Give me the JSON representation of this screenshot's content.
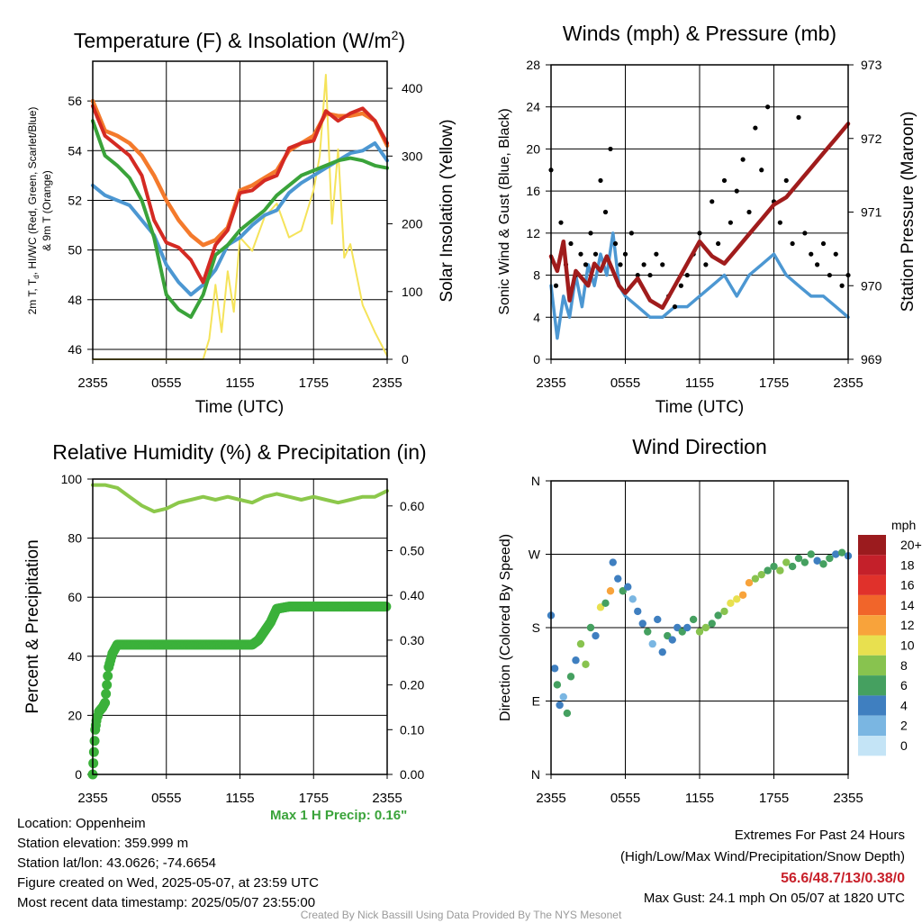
{
  "x_ticks": [
    "2355",
    "0555",
    "1155",
    "1755",
    "2355"
  ],
  "chart_data": [
    {
      "type": "line",
      "title": "Temperature (F) & Insolation (W/m²)",
      "title_parts": {
        "main": "Temperature (F) & Insolation (W/m",
        "sup": "2",
        "end": ")"
      },
      "xlabel": "Time (UTC)",
      "ylabel": "2m T, Td, HI/WC (Red, Green, Scarlet/Blue) & 9m T (Orange)",
      "ylabel_line1": "2m T, T , HI/WC (Red, Green, Scarlet/Blue)",
      "ylabel_sub": "d",
      "ylabel_line2": "& 9m T (Orange)",
      "ylabel_right": "Solar Insolation (Yellow)",
      "ylim": [
        45.6,
        57.6
      ],
      "ylim_right": [
        0,
        440
      ],
      "yticks": [
        "46",
        "48",
        "50",
        "52",
        "54",
        "56"
      ],
      "yticks_right": [
        "0",
        "100",
        "200",
        "300",
        "400"
      ],
      "series": [
        {
          "x": [
            0,
            1,
            2,
            3,
            4,
            5,
            6,
            7,
            8,
            9,
            10,
            11,
            12,
            13,
            14,
            15,
            16,
            17,
            18,
            19,
            20,
            21,
            22,
            23,
            24
          ],
          "values": [
            55.8,
            54.6,
            54.2,
            53.8,
            53.0,
            51.2,
            50.3,
            50.1,
            49.6,
            48.7,
            50.2,
            50.8,
            52.3,
            52.4,
            52.8,
            53.0,
            54.1,
            54.3,
            54.4,
            55.6,
            55.2,
            55.5,
            55.7,
            55.2,
            54.3
          ]
        },
        {
          "x": [
            0,
            1,
            2,
            3,
            4,
            5,
            6,
            7,
            8,
            9,
            10,
            11,
            12,
            13,
            14,
            15,
            16,
            17,
            18,
            19,
            20,
            21,
            22,
            23,
            24
          ],
          "values": [
            55.2,
            53.8,
            53.4,
            52.9,
            52.0,
            50.5,
            48.2,
            47.6,
            47.3,
            48.2,
            49.8,
            50.2,
            50.8,
            51.2,
            51.6,
            52.2,
            52.6,
            53.0,
            53.2,
            53.4,
            53.6,
            53.7,
            53.6,
            53.4,
            53.3
          ]
        },
        {
          "x": [
            0,
            1,
            2,
            3,
            4,
            5,
            6,
            7,
            8,
            9,
            10,
            11,
            12,
            13,
            14,
            15,
            16,
            17,
            18,
            19,
            20,
            21,
            22,
            23,
            24
          ],
          "values": [
            52.6,
            52.2,
            52.0,
            51.8,
            51.2,
            50.6,
            49.4,
            48.7,
            48.2,
            48.6,
            49.2,
            50.2,
            50.5,
            51.0,
            51.4,
            51.6,
            52.3,
            52.7,
            53.0,
            53.3,
            53.6,
            53.9,
            54.0,
            54.3,
            53.6
          ]
        },
        {
          "x": [
            0,
            1,
            2,
            3,
            4,
            5,
            6,
            7,
            8,
            9,
            10,
            11,
            12,
            13,
            14,
            15,
            16,
            17,
            18,
            19,
            20,
            21,
            22,
            23,
            24
          ],
          "values": [
            56.0,
            54.8,
            54.6,
            54.3,
            53.8,
            53.0,
            52.0,
            51.2,
            50.6,
            50.2,
            50.4,
            50.9,
            52.4,
            52.6,
            52.9,
            53.2,
            54.0,
            54.3,
            54.6,
            55.5,
            55.4,
            55.4,
            55.5,
            55.2,
            54.2
          ]
        },
        {
          "x": [
            0,
            1,
            2,
            3,
            4,
            5,
            6,
            7,
            8,
            9,
            9.5,
            10,
            10.5,
            11,
            11.5,
            12,
            13,
            14,
            15,
            16,
            17,
            18,
            18.5,
            19,
            19.5,
            20,
            20.5,
            21,
            22,
            23,
            24
          ],
          "values": [
            0,
            0,
            0,
            0,
            0,
            0,
            0,
            0,
            0,
            0,
            30,
            110,
            40,
            130,
            70,
            180,
            160,
            210,
            230,
            180,
            190,
            250,
            300,
            420,
            200,
            310,
            150,
            170,
            80,
            40,
            5
          ]
        }
      ]
    },
    {
      "type": "line",
      "title": "Winds (mph) & Pressure (mb)",
      "xlabel": "Time (UTC)",
      "ylabel": "Sonic Wind & Gust (Blue, Black)",
      "ylabel_right": "Station Pressure (Maroon)",
      "ylim": [
        0,
        28
      ],
      "ylim_right": [
        969,
        973
      ],
      "yticks": [
        "0",
        "4",
        "8",
        "12",
        "16",
        "20",
        "24",
        "28"
      ],
      "yticks_right": [
        "969",
        "970",
        "971",
        "972",
        "973"
      ],
      "series": [
        {
          "x": [
            0,
            0.5,
            1,
            1.5,
            2,
            2.5,
            3,
            3.5,
            4,
            4.5,
            5,
            5.5,
            6,
            7,
            8,
            9,
            10,
            11,
            12,
            13,
            14,
            15,
            16,
            17,
            18,
            19,
            20,
            21,
            22,
            23,
            24
          ],
          "values": [
            7,
            2,
            6,
            4,
            8,
            5,
            9,
            7,
            10,
            8,
            12,
            7,
            6,
            5,
            4,
            4,
            5,
            5,
            6,
            7,
            8,
            6,
            8,
            9,
            10,
            8,
            7,
            6,
            6,
            5,
            4
          ]
        },
        {
          "x": [
            0,
            0.4,
            0.8,
            1.2,
            1.6,
            2,
            2.4,
            2.8,
            3.2,
            3.6,
            4,
            4.4,
            4.8,
            5.2,
            5.6,
            6,
            6.5,
            7,
            7.5,
            8,
            8.5,
            9,
            9.5,
            10,
            10.5,
            11,
            11.5,
            12,
            12.5,
            13,
            13.5,
            14,
            14.5,
            15,
            15.5,
            16,
            16.5,
            17,
            17.5,
            18,
            18.5,
            19,
            19.5,
            20,
            20.5,
            21,
            21.5,
            22,
            22.5,
            23,
            23.5,
            24
          ],
          "values": [
            18,
            7,
            13,
            9,
            11,
            8,
            10,
            9,
            12,
            10,
            17,
            14,
            20,
            11,
            9,
            10,
            12,
            8,
            9,
            8,
            10,
            9,
            6,
            5,
            7,
            8,
            10,
            12,
            9,
            15,
            11,
            17,
            13,
            16,
            19,
            14,
            22,
            18,
            24,
            15,
            13,
            17,
            11,
            23,
            12,
            10,
            9,
            11,
            8,
            10,
            7,
            8
          ]
        },
        {
          "x": [
            0,
            0.5,
            1,
            1.5,
            2,
            2.5,
            3,
            3.5,
            4,
            4.5,
            5,
            5.5,
            6,
            7,
            8,
            9,
            10,
            11,
            12,
            13,
            14,
            15,
            16,
            17,
            18,
            19,
            20,
            21,
            22,
            23,
            24
          ],
          "values": [
            970.4,
            970.2,
            970.6,
            969.8,
            970.2,
            970.1,
            970.0,
            970.3,
            970.2,
            970.4,
            970.2,
            970.0,
            969.9,
            970.1,
            969.8,
            969.7,
            970.0,
            970.3,
            970.6,
            970.4,
            970.3,
            970.5,
            970.7,
            970.9,
            971.1,
            971.2,
            971.4,
            971.6,
            971.8,
            972.0,
            972.2
          ]
        }
      ]
    },
    {
      "type": "line",
      "title": "Relative Humidity (%) & Precipitation (in)",
      "ylabel": "Percent & Precipitation",
      "ylim": [
        0,
        100
      ],
      "ylim_right": [
        0,
        0.66
      ],
      "yticks": [
        "0",
        "20",
        "40",
        "60",
        "80",
        "100"
      ],
      "yticks_right": [
        "0.00",
        "0.10",
        "0.20",
        "0.30",
        "0.40",
        "0.50",
        "0.60"
      ],
      "series": [
        {
          "x": [
            0,
            1,
            2,
            3,
            4,
            5,
            6,
            7,
            8,
            9,
            10,
            11,
            12,
            13,
            14,
            15,
            16,
            17,
            18,
            19,
            20,
            21,
            22,
            23,
            24
          ],
          "values": [
            98,
            98,
            97,
            94,
            91,
            89,
            90,
            92,
            93,
            94,
            93,
            94,
            93,
            92,
            94,
            95,
            94,
            93,
            94,
            93,
            92,
            93,
            94,
            94,
            96
          ]
        },
        {
          "x": [
            0,
            0.1,
            0.2,
            0.3,
            0.5,
            0.8,
            1.0,
            1.3,
            1.6,
            2.0,
            3,
            5,
            8,
            11,
            13,
            13.5,
            14,
            14.5,
            15,
            16,
            18,
            20,
            22,
            24
          ],
          "values": [
            0,
            0.05,
            0.1,
            0.12,
            0.14,
            0.15,
            0.16,
            0.24,
            0.27,
            0.29,
            0.29,
            0.29,
            0.29,
            0.29,
            0.29,
            0.3,
            0.32,
            0.34,
            0.37,
            0.375,
            0.375,
            0.375,
            0.375,
            0.375
          ]
        }
      ]
    },
    {
      "type": "scatter",
      "title": "Wind Direction",
      "ylabel": "Direction (Colored By Speed)",
      "ylim": [
        0,
        360
      ],
      "yticks": [
        "N",
        "E",
        "S",
        "W",
        "N"
      ],
      "legend_title": "mph",
      "legend_labels": [
        "20+",
        "18",
        "16",
        "14",
        "12",
        "10",
        "8",
        "6",
        "4",
        "2",
        "0"
      ],
      "legend_colors": [
        "#9b1b1e",
        "#c4202a",
        "#e0312b",
        "#f1652a",
        "#f8a33b",
        "#e8e04f",
        "#88c34f",
        "#45a060",
        "#3f7fc0",
        "#7ab6e2",
        "#c4e4f6"
      ],
      "series": [
        {
          "x": [
            0,
            0.3,
            0.5,
            0.7,
            1.0,
            1.3,
            1.6,
            2.0,
            2.4,
            2.8,
            3.2,
            3.6,
            4.0,
            4.4,
            4.8,
            5.0,
            5.4,
            5.8,
            6.2,
            6.6,
            7.0,
            7.4,
            7.8,
            8.2,
            8.6,
            9.0,
            9.4,
            9.8,
            10.2,
            10.6,
            11.0,
            11.5,
            12.0,
            12.5,
            13.0,
            13.5,
            14.0,
            14.5,
            15.0,
            15.5,
            16.0,
            16.5,
            17.0,
            17.5,
            18.0,
            18.5,
            19.0,
            19.5,
            20.0,
            20.5,
            21.0,
            21.5,
            22.0,
            22.5,
            23.0,
            23.5,
            24.0
          ],
          "values": [
            195,
            130,
            110,
            85,
            95,
            75,
            120,
            140,
            160,
            135,
            180,
            170,
            205,
            210,
            225,
            260,
            240,
            225,
            230,
            215,
            200,
            185,
            175,
            160,
            190,
            150,
            170,
            165,
            180,
            175,
            180,
            190,
            175,
            180,
            185,
            195,
            200,
            210,
            215,
            220,
            235,
            240,
            245,
            250,
            255,
            250,
            260,
            255,
            265,
            260,
            270,
            262,
            258,
            265,
            270,
            272,
            268
          ],
          "speeds": [
            4,
            3,
            6,
            4,
            2,
            5,
            6,
            4,
            7,
            8,
            6,
            4,
            9,
            5,
            11,
            3,
            4,
            5,
            4,
            2,
            3,
            4,
            5,
            2,
            3,
            4,
            6,
            3,
            4,
            5,
            4,
            6,
            8,
            7,
            5,
            6,
            8,
            10,
            9,
            12,
            11,
            8,
            7,
            6,
            5,
            7,
            8,
            6,
            5,
            6,
            5,
            4,
            6,
            5,
            4,
            5,
            4
          ]
        }
      ]
    }
  ],
  "footer_left": [
    "Location: Oppenheim",
    "Station elevation: 359.999 m",
    "Station lat/lon: 43.0626; -74.6654",
    "Figure created on Wed, 2025-05-07, at 23:59 UTC",
    "Most recent data timestamp: 2025/05/07 23:55:00"
  ],
  "max_precip": "Max 1 H Precip: 0.16\"",
  "extremes_title": "Extremes For Past 24 Hours",
  "extremes_sub": "(High/Low/Max Wind/Precipitation/Snow Depth)",
  "extremes_values": "56.6/48.7/13/0.38/0",
  "max_gust": "Max Gust: 24.1 mph On 05/07 at 1820 UTC",
  "credit": "Created By Nick Bassill Using Data Provided By The NYS Mesonet",
  "colors": {
    "red": "#d42a23",
    "green": "#3aa33a",
    "scarlet": "#e64b2a",
    "blue": "#4c97d2",
    "orange": "#f47a2c",
    "yellow": "#f5e35a",
    "black": "#000000",
    "maroon": "#a01c1c",
    "rh_green": "#8cc84b",
    "precip_green": "#3bb13a"
  }
}
